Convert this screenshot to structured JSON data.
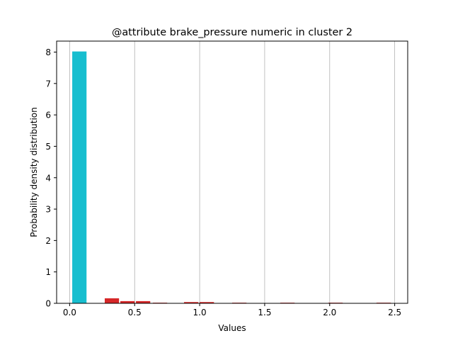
{
  "colors": {
    "highlight": "#17becf",
    "bars": "#d62728",
    "grid": "#b0b0b0",
    "axes": "#000000"
  },
  "chart_data": {
    "type": "bar",
    "title": "@attribute brake_pressure numeric in cluster  2",
    "xlabel": "Values",
    "ylabel": "Probability density distribution",
    "xlim": [
      -0.1,
      2.6
    ],
    "ylim": [
      0,
      8.35
    ],
    "xticks": [
      0.0,
      0.5,
      1.0,
      1.5,
      2.0,
      2.5
    ],
    "xtick_labels": [
      "0.0",
      "0.5",
      "1.0",
      "1.5",
      "2.0",
      "2.5"
    ],
    "yticks": [
      0,
      1,
      2,
      3,
      4,
      5,
      6,
      7,
      8
    ],
    "ytick_labels": [
      "0",
      "1",
      "2",
      "3",
      "4",
      "5",
      "6",
      "7",
      "8"
    ],
    "grid": "vertical",
    "bars": [
      {
        "x0": 0.02,
        "x1": 0.13,
        "value": 8.02,
        "highlight": true
      },
      {
        "x0": 0.27,
        "x1": 0.38,
        "value": 0.16,
        "highlight": false
      },
      {
        "x0": 0.39,
        "x1": 0.5,
        "value": 0.07,
        "highlight": false
      },
      {
        "x0": 0.51,
        "x1": 0.62,
        "value": 0.07,
        "highlight": false
      },
      {
        "x0": 0.64,
        "x1": 0.75,
        "value": 0.02,
        "highlight": false
      },
      {
        "x0": 0.88,
        "x1": 0.99,
        "value": 0.04,
        "highlight": false
      },
      {
        "x0": 1.0,
        "x1": 1.11,
        "value": 0.04,
        "highlight": false
      },
      {
        "x0": 1.25,
        "x1": 1.36,
        "value": 0.02,
        "highlight": false
      },
      {
        "x0": 1.62,
        "x1": 1.73,
        "value": 0.02,
        "highlight": false
      },
      {
        "x0": 1.99,
        "x1": 2.1,
        "value": 0.02,
        "highlight": false
      },
      {
        "x0": 2.36,
        "x1": 2.47,
        "value": 0.02,
        "highlight": false
      }
    ]
  }
}
